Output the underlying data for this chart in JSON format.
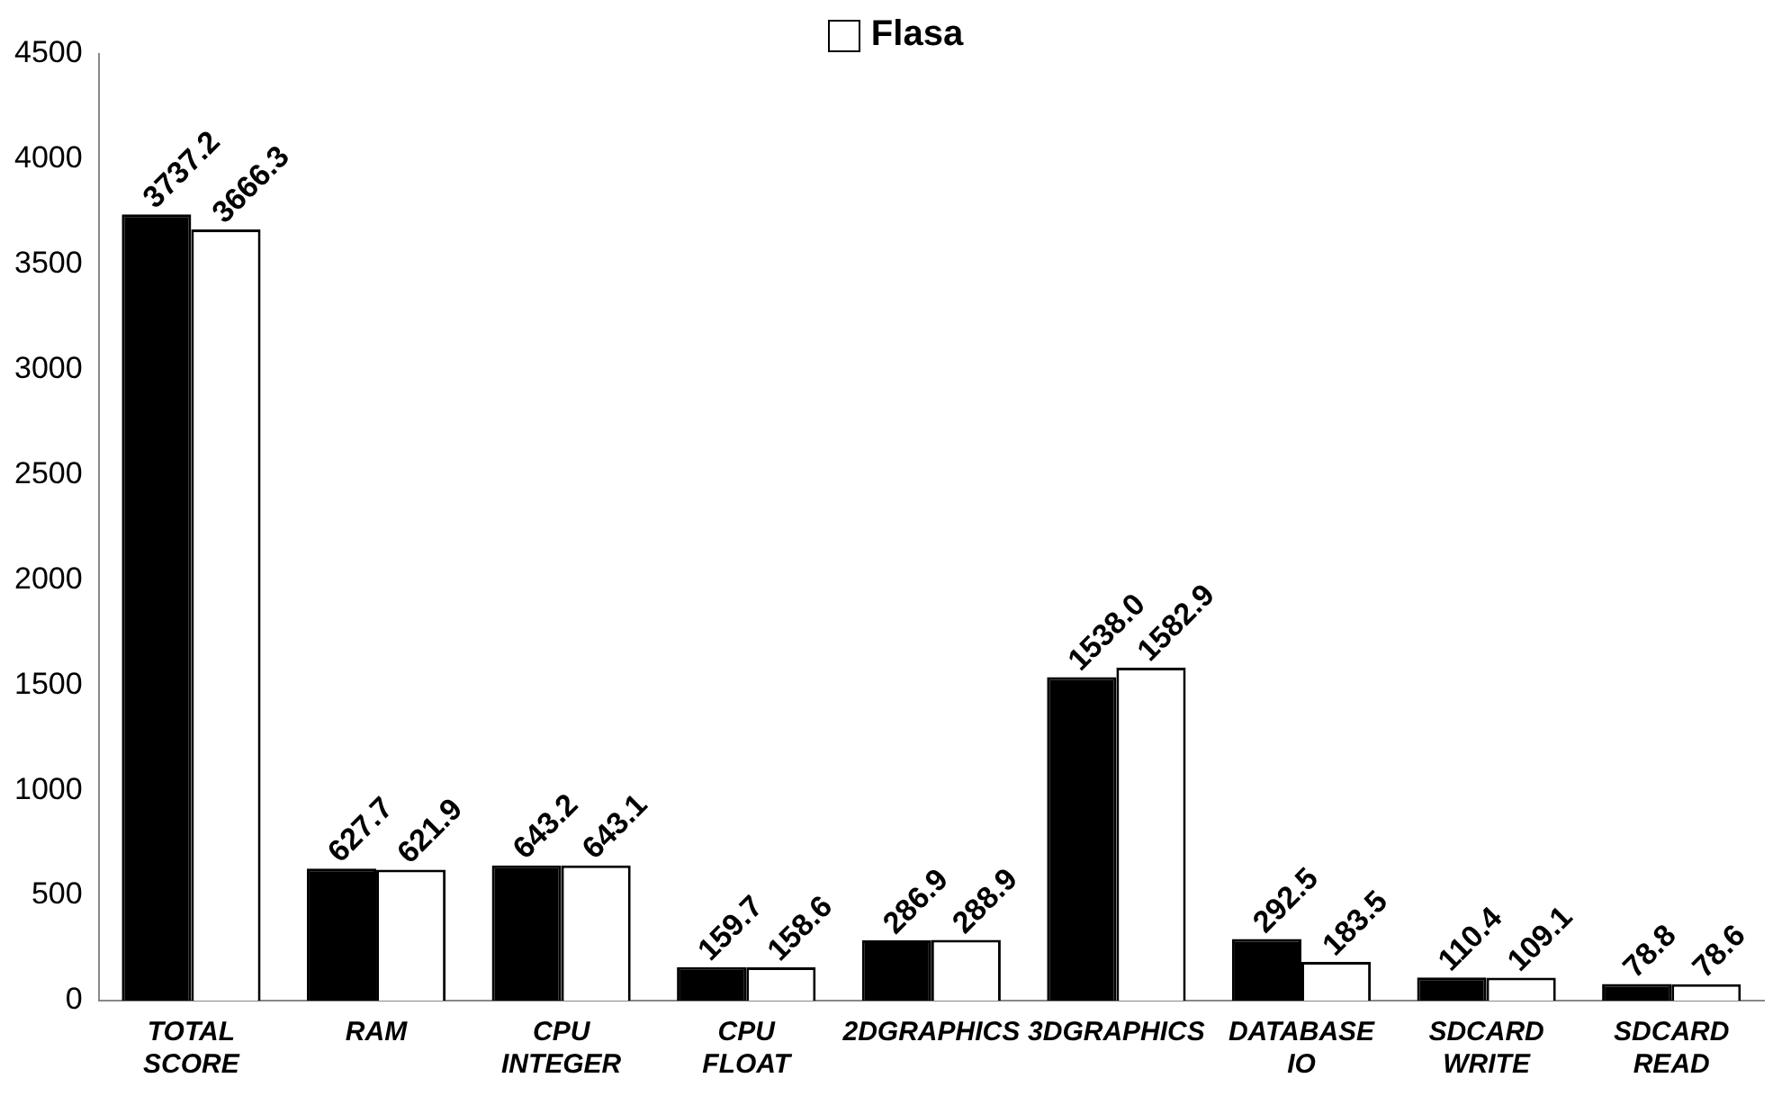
{
  "chart_data": {
    "type": "bar",
    "categories": [
      "TOTAL SCORE",
      "RAM",
      "CPU INTEGER",
      "CPU FLOAT",
      "2DGRAPHICS",
      "3DGRAPHICS",
      "DATABASE IO",
      "SDCARD WRITE",
      "SDCARD READ"
    ],
    "series": [
      {
        "color": "#000000",
        "values": [
          3737.2,
          627.7,
          643.2,
          159.7,
          286.9,
          1538.0,
          292.5,
          110.4,
          78.8
        ],
        "value_labels": [
          "3737.2",
          "627.7",
          "643.2",
          "159.7",
          "286.9",
          "1538.0",
          "292.5",
          "110.4",
          "78.8"
        ]
      },
      {
        "name": "Flasa",
        "color": "#ffffff",
        "values": [
          3666.3,
          621.9,
          643.1,
          158.6,
          288.9,
          1582.9,
          183.5,
          109.1,
          78.6
        ],
        "value_labels": [
          "3666.3",
          "621.9",
          "643.1",
          "158.6",
          "288.9",
          "1582.9",
          "183.5",
          "109.1",
          "78.6"
        ]
      }
    ],
    "ylim": [
      0,
      4500
    ],
    "yticks": [
      0,
      500,
      1000,
      1500,
      2000,
      2500,
      3000,
      3500,
      4000,
      4500
    ],
    "grid": false,
    "legend": "top"
  }
}
